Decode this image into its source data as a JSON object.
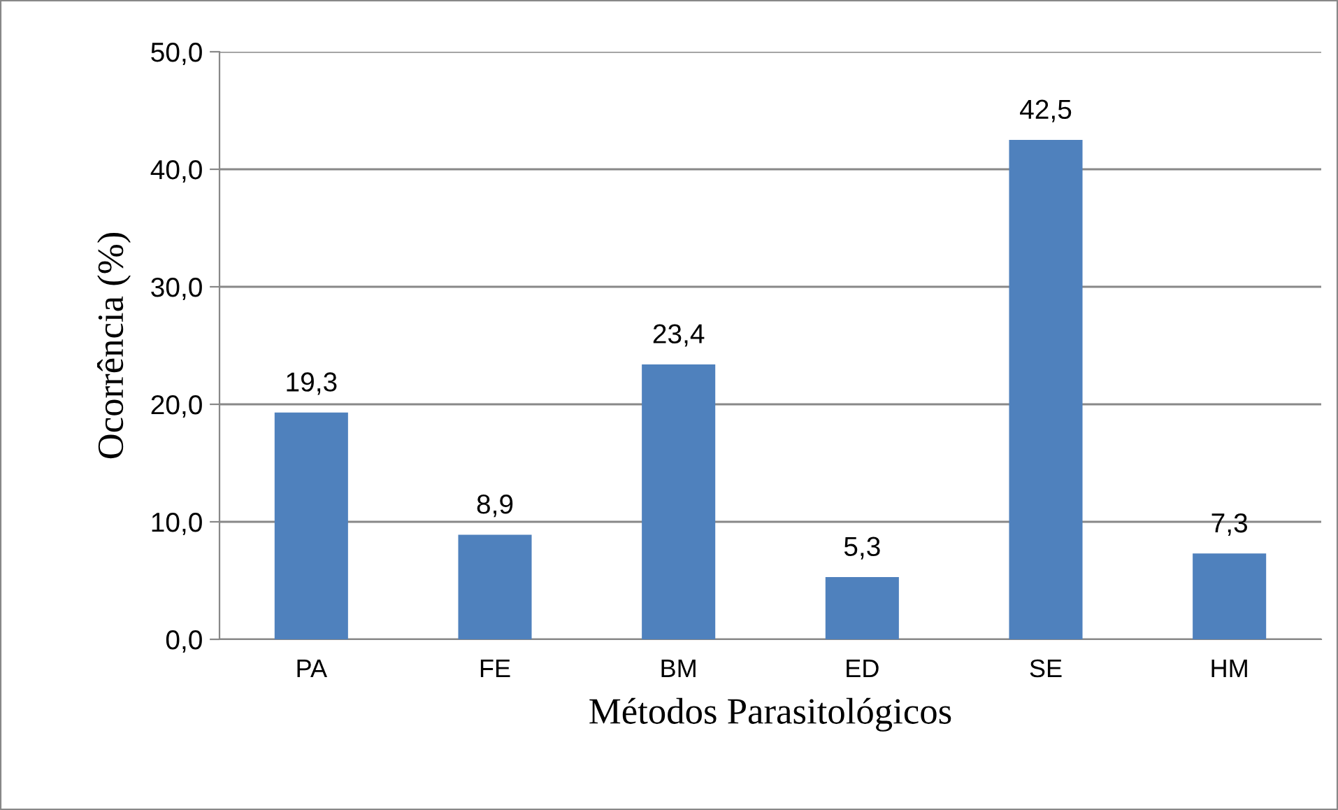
{
  "chart_data": {
    "type": "bar",
    "xlabel": "Métodos Parasitológicos",
    "ylabel": "Ocorrência (%)",
    "categories": [
      "PA",
      "FE",
      "BM",
      "ED",
      "SE",
      "HM"
    ],
    "values": [
      19.3,
      8.9,
      23.4,
      5.3,
      42.5,
      7.3
    ],
    "value_labels": [
      "19,3",
      "8,9",
      "23,4",
      "5,3",
      "42,5",
      "7,3"
    ],
    "color": "#4f81bd",
    "ylim": [
      0,
      50
    ],
    "yticks": [
      {
        "value": 0,
        "label": "0,0"
      },
      {
        "value": 10,
        "label": "10,0"
      },
      {
        "value": 20,
        "label": "20,0"
      },
      {
        "value": 30,
        "label": "30,0"
      },
      {
        "value": 40,
        "label": "40,0"
      },
      {
        "value": 50,
        "label": "50,0"
      }
    ],
    "grid": "y",
    "legend": false
  }
}
